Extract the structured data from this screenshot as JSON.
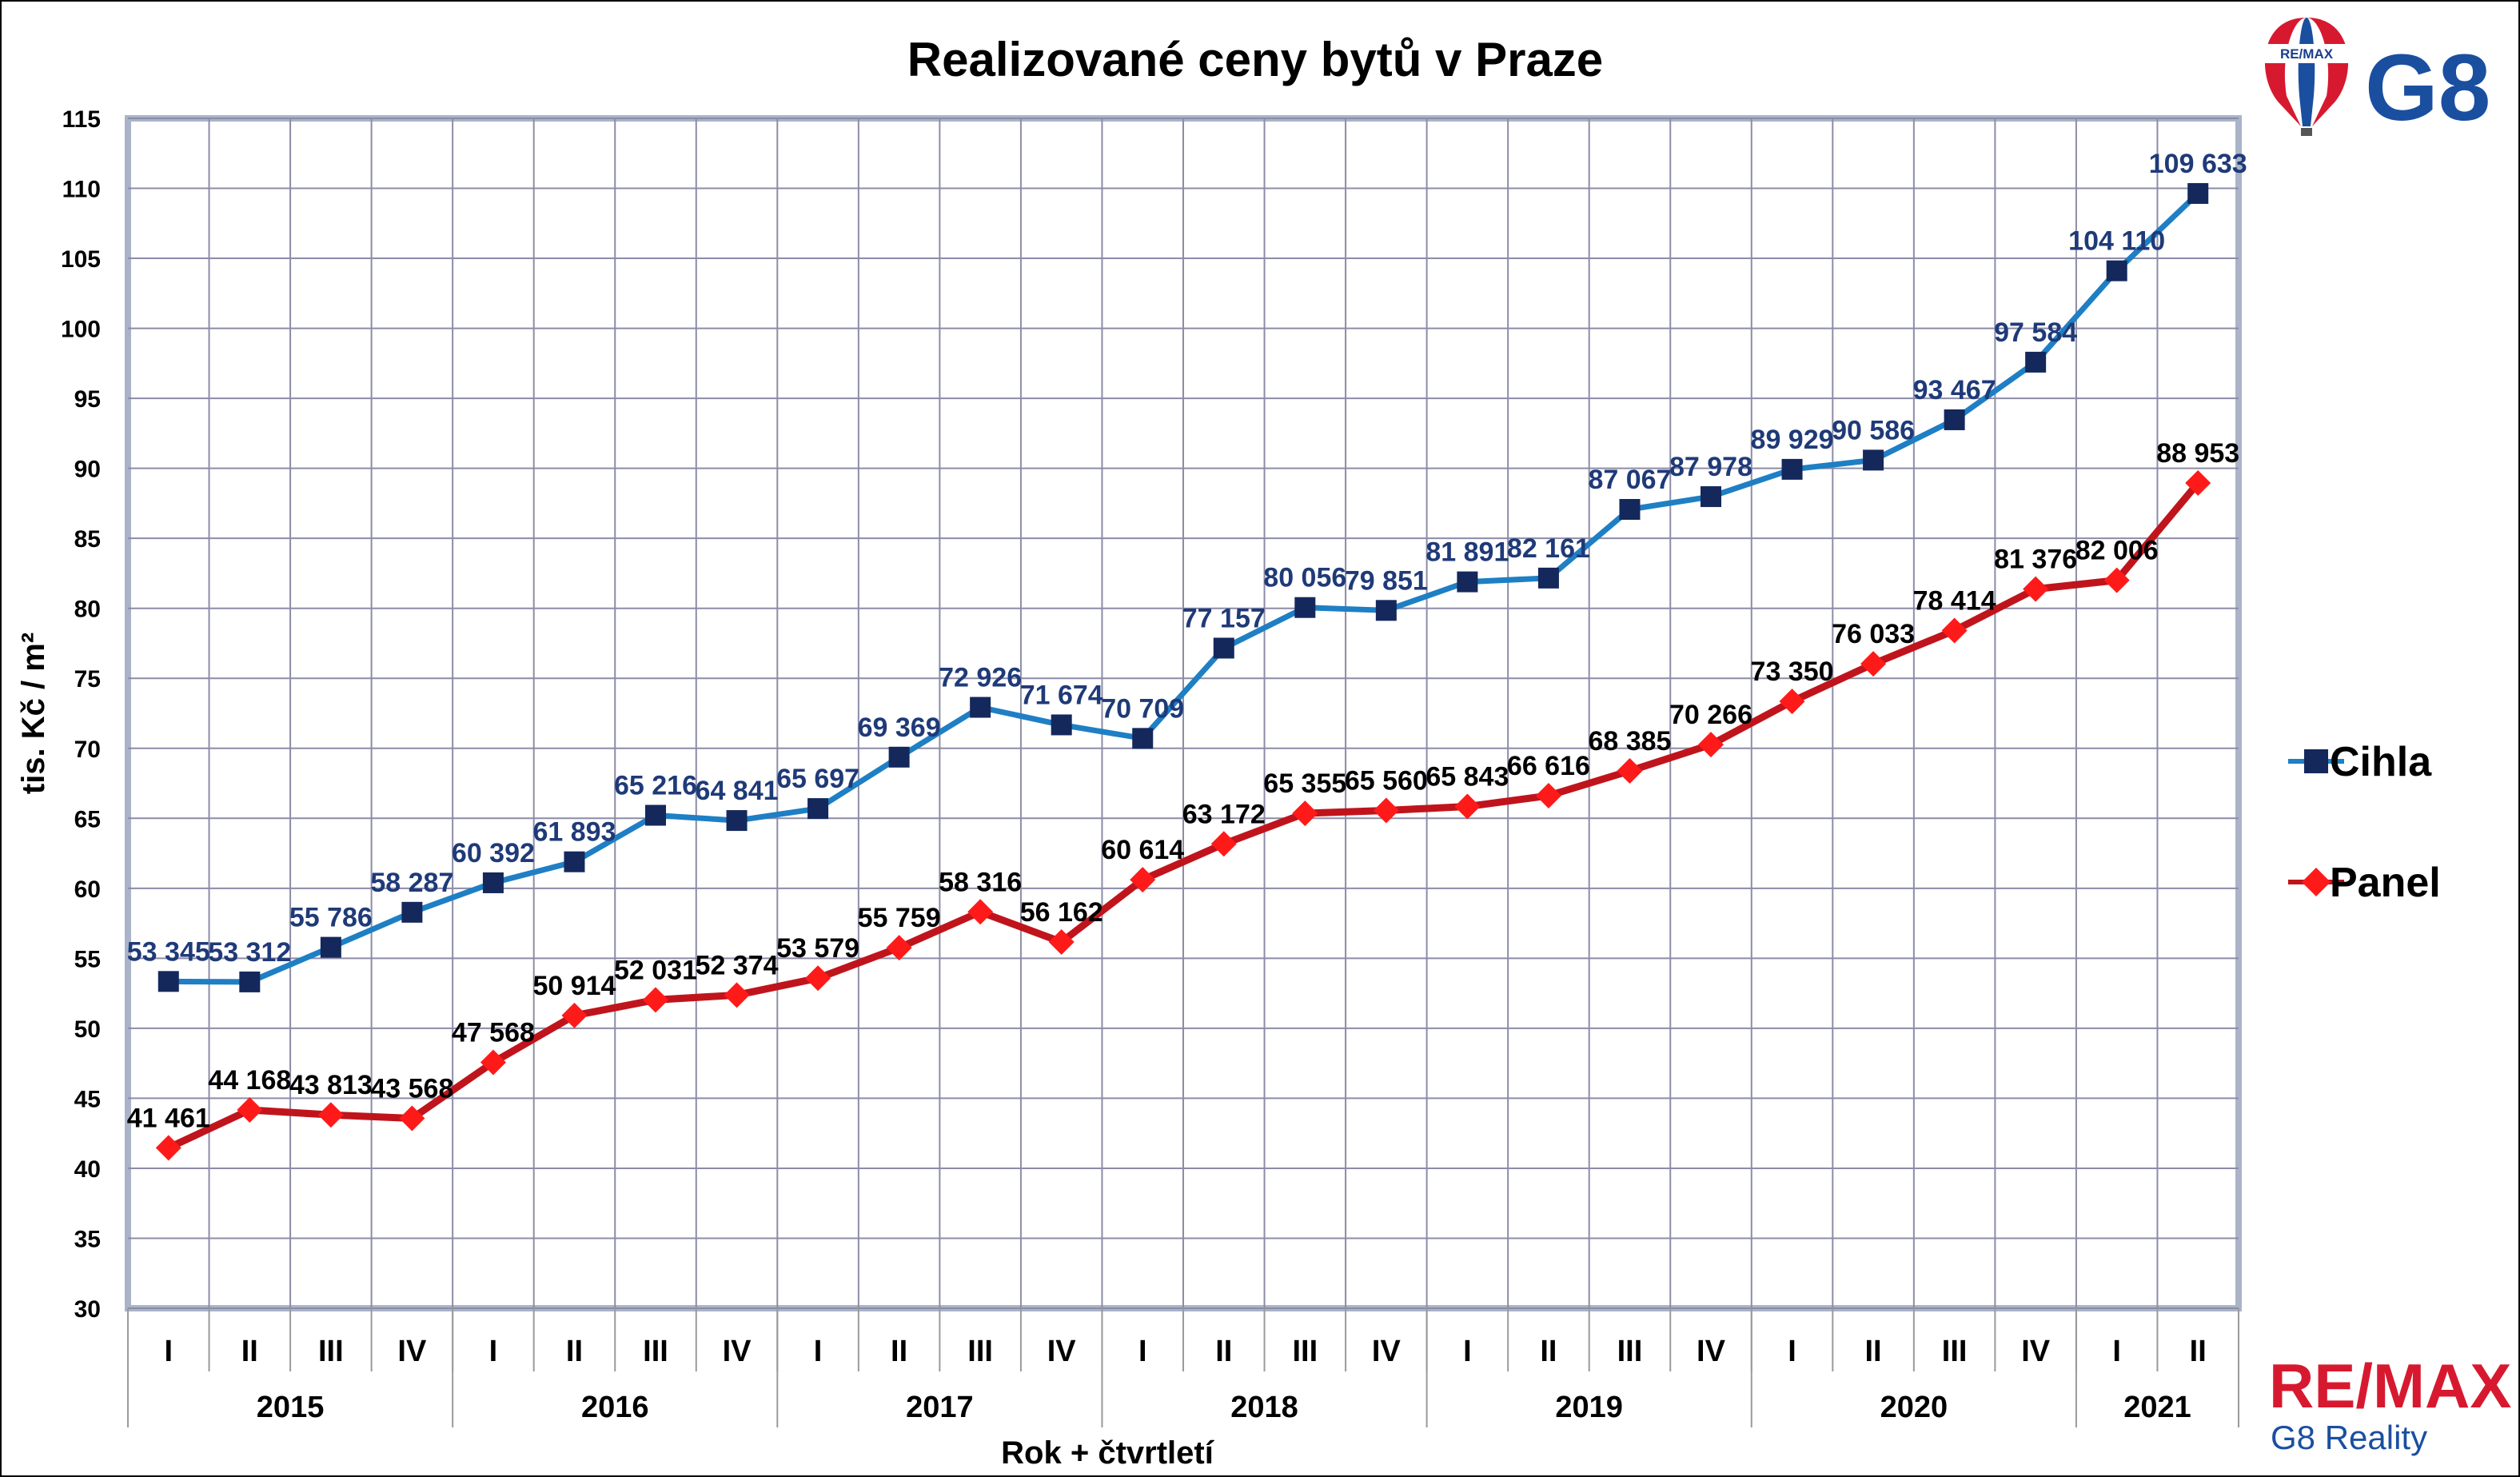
{
  "brand": {
    "balloon_text": "RE/MAX",
    "logo_text": "G8",
    "footer_main": "RE/MAX",
    "footer_sub": "G8 Reality",
    "red": "#d7192f",
    "blue": "#1a4fa0"
  },
  "chart_data": {
    "type": "line",
    "title": "Realizované ceny bytů v Praze",
    "xlabel": "Rok + čtvrtletí",
    "ylabel": "tis. Kč / m²",
    "ylim": [
      30,
      115
    ],
    "yticks": [
      30,
      35,
      40,
      45,
      50,
      55,
      60,
      65,
      70,
      75,
      80,
      85,
      90,
      95,
      100,
      105,
      110,
      115
    ],
    "grid": true,
    "legend_position": "right",
    "quarters": [
      "I",
      "II",
      "III",
      "IV",
      "I",
      "II",
      "III",
      "IV",
      "I",
      "II",
      "III",
      "IV",
      "I",
      "II",
      "III",
      "IV",
      "I",
      "II",
      "III",
      "IV",
      "I",
      "II",
      "III",
      "IV",
      "I",
      "II"
    ],
    "years": [
      {
        "label": "2015",
        "quarters": 4
      },
      {
        "label": "2016",
        "quarters": 4
      },
      {
        "label": "2017",
        "quarters": 4
      },
      {
        "label": "2018",
        "quarters": 4
      },
      {
        "label": "2019",
        "quarters": 4
      },
      {
        "label": "2020",
        "quarters": 4
      },
      {
        "label": "2021",
        "quarters": 2
      }
    ],
    "series": [
      {
        "name": "Cihla",
        "color": "#1e7fc4",
        "marker": "square",
        "marker_color": "#14285c",
        "values": [
          53.345,
          53.312,
          55.786,
          58.287,
          60.392,
          61.893,
          65.216,
          64.841,
          65.697,
          69.369,
          72.926,
          71.674,
          70.709,
          77.157,
          80.056,
          79.851,
          81.891,
          82.161,
          87.067,
          87.978,
          89.929,
          90.586,
          93.467,
          97.584,
          104.11,
          109.633
        ],
        "labels": [
          "53 345",
          "53 312",
          "55 786",
          "58 287",
          "60 392",
          "61 893",
          "65 216",
          "64 841",
          "65 697",
          "69 369",
          "72 926",
          "71 674",
          "70 709",
          "77 157",
          "80 056",
          "79 851",
          "81 891",
          "82 161",
          "87 067",
          "87 978",
          "89 929",
          "90 586",
          "93 467",
          "97 584",
          "104 110",
          "109 633"
        ]
      },
      {
        "name": "Panel",
        "color": "#c0141c",
        "marker": "diamond",
        "marker_color": "#ff1a1a",
        "values": [
          41.461,
          44.168,
          43.813,
          43.568,
          47.568,
          50.914,
          52.031,
          52.374,
          53.579,
          55.759,
          58.316,
          56.162,
          60.614,
          63.172,
          65.355,
          65.56,
          65.843,
          66.616,
          68.385,
          70.266,
          73.35,
          76.033,
          78.414,
          81.376,
          82.006,
          88.953
        ],
        "labels": [
          "41 461",
          "44 168",
          "43 813",
          "43 568",
          "47 568",
          "50 914",
          "52 031",
          "52 374",
          "53 579",
          "55 759",
          "58 316",
          "56 162",
          "60 614",
          "63 172",
          "65 355",
          "65 560",
          "65 843",
          "66 616",
          "68 385",
          "70 266",
          "73 350",
          "76 033",
          "78 414",
          "81 376",
          "82 006",
          "88 953"
        ]
      }
    ]
  }
}
